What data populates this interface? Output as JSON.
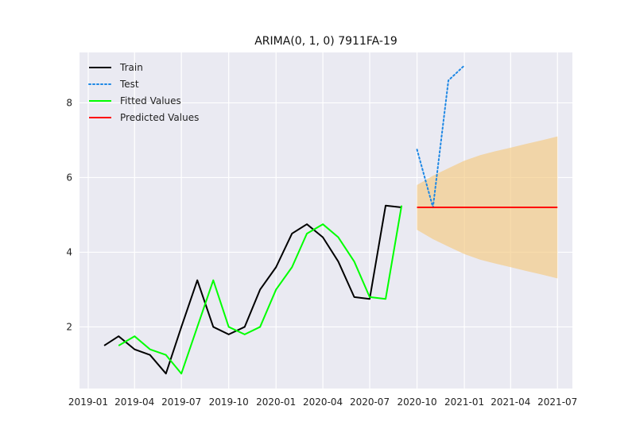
{
  "chart_data": {
    "type": "line",
    "title": "ARIMA(0, 1, 0) 7911FA-19",
    "xlabel": "",
    "ylabel": "",
    "background": "#EAEAF2",
    "grid": true,
    "legend_position": "top-left",
    "x_range": [
      "2018-12-15",
      "2021-07-30"
    ],
    "y_range": [
      0.35,
      9.35
    ],
    "x_ticks": [
      {
        "date": "2019-01-01",
        "label": "2019-01"
      },
      {
        "date": "2019-04-01",
        "label": "2019-04"
      },
      {
        "date": "2019-07-01",
        "label": "2019-07"
      },
      {
        "date": "2019-10-01",
        "label": "2019-10"
      },
      {
        "date": "2020-01-01",
        "label": "2020-01"
      },
      {
        "date": "2020-04-01",
        "label": "2020-04"
      },
      {
        "date": "2020-07-01",
        "label": "2020-07"
      },
      {
        "date": "2020-10-01",
        "label": "2020-10"
      },
      {
        "date": "2021-01-01",
        "label": "2021-01"
      },
      {
        "date": "2021-04-01",
        "label": "2021-04"
      },
      {
        "date": "2021-07-01",
        "label": "2021-07"
      }
    ],
    "y_ticks": [
      {
        "value": 2,
        "label": "2"
      },
      {
        "value": 4,
        "label": "4"
      },
      {
        "value": 6,
        "label": "6"
      },
      {
        "value": 8,
        "label": "8"
      }
    ],
    "series": [
      {
        "name": "Train",
        "color": "#000000",
        "style": "solid",
        "x": [
          "2019-02-01",
          "2019-03-01",
          "2019-04-01",
          "2019-05-01",
          "2019-06-01",
          "2019-07-01",
          "2019-08-01",
          "2019-09-01",
          "2019-10-01",
          "2019-11-01",
          "2019-12-01",
          "2020-01-01",
          "2020-02-01",
          "2020-03-01",
          "2020-04-01",
          "2020-05-01",
          "2020-06-01",
          "2020-07-01",
          "2020-08-01",
          "2020-09-01"
        ],
        "y": [
          1.5,
          1.75,
          1.4,
          1.25,
          0.75,
          2.0,
          3.25,
          2.0,
          1.8,
          2.0,
          3.0,
          3.6,
          4.5,
          4.75,
          4.4,
          3.75,
          2.8,
          2.75,
          5.25,
          5.2
        ]
      },
      {
        "name": "Test",
        "color": "#1E88E5",
        "style": "dotted",
        "x": [
          "2020-10-01",
          "2020-11-01",
          "2020-12-01",
          "2021-01-01"
        ],
        "y": [
          6.75,
          5.2,
          8.6,
          9.0
        ]
      },
      {
        "name": "Fitted Values",
        "color": "#00FF00",
        "style": "solid",
        "x": [
          "2019-03-01",
          "2019-04-01",
          "2019-05-01",
          "2019-06-01",
          "2019-07-01",
          "2019-08-01",
          "2019-09-01",
          "2019-10-01",
          "2019-11-01",
          "2019-12-01",
          "2020-01-01",
          "2020-02-01",
          "2020-03-01",
          "2020-04-01",
          "2020-05-01",
          "2020-06-01",
          "2020-07-01",
          "2020-08-01",
          "2020-09-01"
        ],
        "y": [
          1.5,
          1.75,
          1.4,
          1.25,
          0.75,
          2.0,
          3.25,
          2.0,
          1.8,
          2.0,
          3.0,
          3.6,
          4.5,
          4.75,
          4.4,
          3.75,
          2.8,
          2.75,
          5.25
        ]
      },
      {
        "name": "Predicted Values",
        "color": "#FF0000",
        "style": "solid",
        "x": [
          "2020-10-01",
          "2021-07-01"
        ],
        "y": [
          5.2,
          5.2
        ]
      }
    ],
    "confidence_band": {
      "color": "#F5C97F",
      "opacity": 0.65,
      "x": [
        "2020-10-01",
        "2020-11-01",
        "2020-12-01",
        "2021-01-01",
        "2021-02-01",
        "2021-03-01",
        "2021-04-01",
        "2021-05-01",
        "2021-06-01",
        "2021-07-01"
      ],
      "lower": [
        4.6,
        4.35,
        4.15,
        3.95,
        3.8,
        3.7,
        3.6,
        3.5,
        3.4,
        3.3
      ],
      "upper": [
        5.8,
        6.05,
        6.25,
        6.45,
        6.6,
        6.7,
        6.8,
        6.9,
        7.0,
        7.1
      ]
    }
  }
}
